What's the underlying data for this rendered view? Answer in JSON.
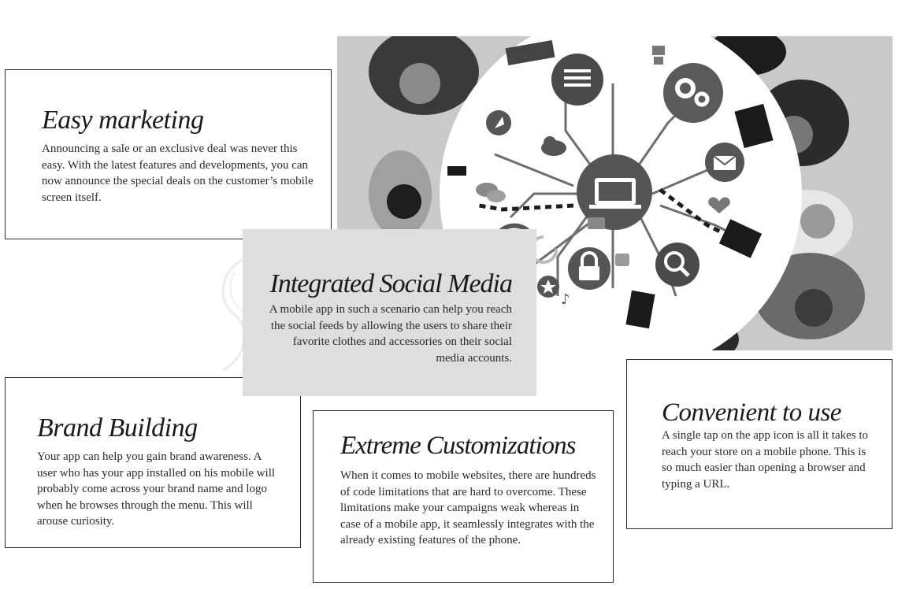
{
  "cards": {
    "easy_marketing": {
      "title": "Easy marketing",
      "body": "Announcing a sale or an exclusive deal was never this easy. With the latest features and developments, you can now announce the special deals on the customer’s mobile screen itself."
    },
    "social_media": {
      "title": "Integrated Social Media",
      "body": "A mobile app in such a scenario can help you reach the social feeds by allowing the users to share their favorite clothes and accessories on their social media accounts."
    },
    "brand_building": {
      "title": "Brand Building",
      "body": "Your app can help you gain brand awareness. A user who has your app installed on his mobile will probably come across your brand name and logo when he browses through the menu. This will arouse curiosity."
    },
    "customizations": {
      "title": "Extreme Customizations",
      "body": "When it comes to mobile websites, there are hundreds of code limitations that are hard to overcome. These limitations make your campaigns weak whereas in case of a mobile app, it seamlessly integrates with the already existing features of the phone."
    },
    "convenient": {
      "title": "Convenient to use",
      "body": "A single tap on the app icon is all it takes to reach your store on a mobile phone. This is so much easier than opening a browser and typing a URL."
    }
  },
  "hero_image": {
    "icons": [
      "document-icon",
      "gears-icon",
      "robot-icon",
      "rocket-icon",
      "cloud-icon",
      "laptop-icon",
      "mail-icon",
      "heart-icon",
      "chat-icon",
      "wifi-icon",
      "camera-icon",
      "lock-icon",
      "thumbs-up-icon",
      "search-icon",
      "star-icon",
      "music-icon",
      "refresh-icon"
    ]
  }
}
